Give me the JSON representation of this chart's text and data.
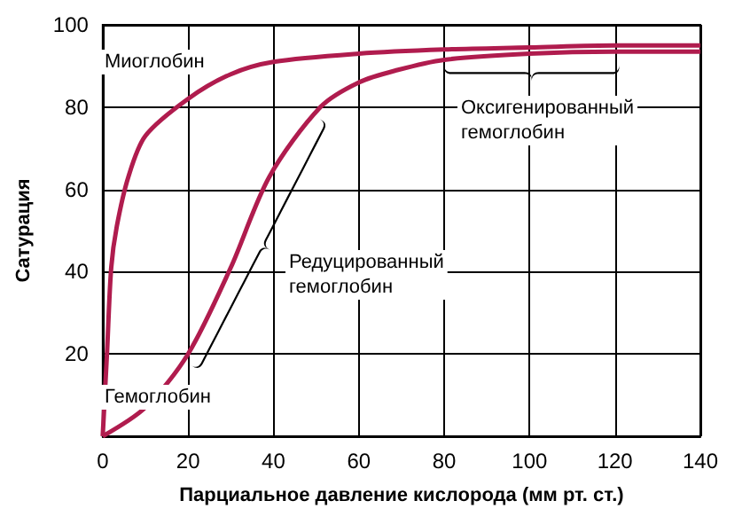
{
  "chart_data": {
    "type": "line",
    "xlabel": "Парциальное давление кислорода (мм рт. ст.)",
    "ylabel": "Сатурация",
    "xlim": [
      0,
      140
    ],
    "xticks": [
      0,
      20,
      40,
      60,
      80,
      100,
      120,
      140
    ],
    "ylim": [
      0,
      100
    ],
    "yticks": [
      {
        "value": 0,
        "label": null
      },
      20,
      40,
      60,
      80,
      100
    ],
    "grid": true,
    "marker": "none",
    "line_style": "solid",
    "series": [
      {
        "color": "#b01c4e",
        "x": [
          0,
          1,
          2,
          3.3,
          6,
          10,
          20,
          30,
          40,
          60,
          80,
          100,
          120,
          140
        ],
        "values": [
          0,
          20,
          41,
          51,
          63,
          73,
          82,
          88,
          91,
          93,
          94,
          94.5,
          95,
          95
        ]
      },
      {
        "color": "#b01c4e",
        "x": [
          0,
          10,
          20,
          30,
          39,
          51,
          60,
          69,
          80,
          100,
          120,
          140
        ],
        "values": [
          0,
          7,
          20,
          41,
          63,
          80,
          86,
          89,
          91.5,
          93,
          93.5,
          93.5
        ]
      }
    ],
    "annotations": [
      "Миоглобин",
      "Гемоглобин",
      "Редуцированный\nгемоглобин",
      "Оксигенированный\nгемоглобин"
    ]
  }
}
